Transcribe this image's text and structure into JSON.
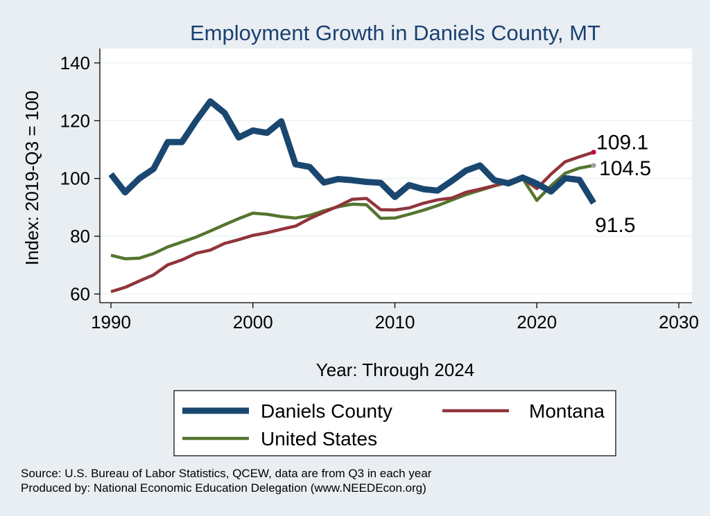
{
  "chart_data": {
    "type": "line",
    "title": "Employment Growth in Daniels County, MT",
    "xlabel": "Year: Through 2024",
    "ylabel": "Index: 2019-Q3 = 100",
    "xlim": [
      1990,
      2030
    ],
    "ylim": [
      57,
      145
    ],
    "xticks": [
      1990,
      2000,
      2010,
      2020,
      2030
    ],
    "yticks": [
      60,
      80,
      100,
      120,
      140
    ],
    "grid": true,
    "legend_position": "bottom",
    "colors": {
      "background": "#e9eef3",
      "plot_background": "#ffffff",
      "grid": "#eaf2f3",
      "title": "#1a4171",
      "Daniels  County": "#1a476f",
      "Montana": "#90353b",
      "United States": "#55752f",
      "end_dot_montana": "#c10534",
      "end_dot_us": "#9aa4a8"
    },
    "x": [
      1990,
      1991,
      1992,
      1993,
      1994,
      1995,
      1996,
      1997,
      1998,
      1999,
      2000,
      2001,
      2002,
      2003,
      2004,
      2005,
      2006,
      2007,
      2008,
      2009,
      2010,
      2011,
      2012,
      2013,
      2014,
      2015,
      2016,
      2017,
      2018,
      2019,
      2020,
      2021,
      2022,
      2023,
      2024
    ],
    "series": [
      {
        "name": "Daniels  County",
        "values": [
          101.5,
          95.2,
          100.0,
          103.3,
          112.6,
          112.6,
          120.0,
          126.7,
          122.7,
          114.2,
          116.6,
          115.8,
          119.8,
          104.9,
          104.0,
          98.6,
          99.8,
          99.4,
          98.8,
          98.5,
          93.6,
          97.7,
          96.3,
          95.8,
          99.1,
          102.7,
          104.5,
          99.4,
          98.3,
          100.3,
          98.2,
          95.5,
          100.1,
          99.5,
          91.5
        ]
      },
      {
        "name": "Montana",
        "values": [
          60.8,
          62.3,
          64.5,
          66.6,
          70.1,
          71.8,
          74.1,
          75.2,
          77.5,
          78.8,
          80.3,
          81.2,
          82.4,
          83.5,
          86.1,
          88.3,
          90.4,
          92.8,
          93.1,
          89.2,
          89.1,
          89.8,
          91.4,
          92.6,
          93.2,
          95.2,
          96.3,
          97.5,
          99.0,
          100.0,
          96.5,
          101.5,
          105.8,
          107.5,
          109.1
        ]
      },
      {
        "name": "United States",
        "values": [
          73.4,
          72.2,
          72.4,
          74.0,
          76.3,
          78.0,
          79.7,
          81.8,
          84.0,
          86.1,
          88.0,
          87.6,
          86.8,
          86.3,
          87.2,
          88.8,
          90.2,
          91.1,
          90.9,
          86.2,
          86.3,
          87.6,
          89.0,
          90.6,
          92.5,
          94.4,
          95.9,
          97.4,
          98.7,
          100.0,
          92.4,
          97.5,
          101.8,
          103.6,
          104.5
        ]
      }
    ],
    "end_labels": [
      {
        "series": "Montana",
        "text": "109.1"
      },
      {
        "series": "United States",
        "text": "104.5"
      },
      {
        "series": "Daniels  County",
        "text": "91.5"
      }
    ],
    "legend": [
      "Daniels  County",
      "Montana",
      "United States"
    ]
  },
  "footer": {
    "source": "Source: U.S. Bureau of Labor Statistics, QCEW, data are from Q3 in each year",
    "produced": "Produced by: National Economic Education Delegation (www.NEEDEcon.org)"
  }
}
